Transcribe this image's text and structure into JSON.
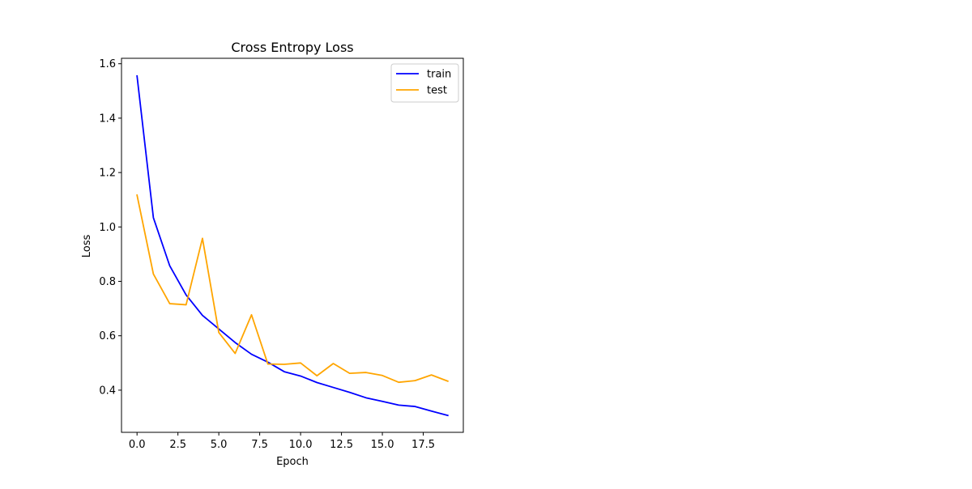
{
  "chart_data": {
    "type": "line",
    "title": "Cross Entropy Loss",
    "xlabel": "Epoch",
    "ylabel": "Loss",
    "xlim": [
      -0.95,
      19.95
    ],
    "ylim": [
      0.245,
      1.62
    ],
    "xticks": [
      0,
      2.5,
      5,
      7.5,
      10,
      12.5,
      15,
      17.5
    ],
    "xtick_labels": [
      "0.0",
      "2.5",
      "5.0",
      "7.5",
      "10.0",
      "12.5",
      "15.0",
      "17.5"
    ],
    "yticks": [
      0.4,
      0.6,
      0.8,
      1.0,
      1.2,
      1.4,
      1.6
    ],
    "ytick_labels": [
      "0.4",
      "0.6",
      "0.8",
      "1.0",
      "1.2",
      "1.4",
      "1.6"
    ],
    "grid": false,
    "legend_position": "upper right",
    "x": [
      0,
      1,
      2,
      3,
      4,
      5,
      6,
      7,
      8,
      9,
      10,
      11,
      12,
      13,
      14,
      15,
      16,
      17,
      18,
      19
    ],
    "series": [
      {
        "name": "train",
        "color": "#0000ff",
        "values": [
          1.555,
          1.034,
          0.857,
          0.75,
          0.675,
          0.625,
          0.575,
          0.532,
          0.503,
          0.468,
          0.452,
          0.428,
          0.41,
          0.392,
          0.372,
          0.359,
          0.345,
          0.34,
          0.323,
          0.307
        ]
      },
      {
        "name": "test",
        "color": "#ffa500",
        "values": [
          1.117,
          0.827,
          0.718,
          0.714,
          0.958,
          0.612,
          0.535,
          0.677,
          0.496,
          0.495,
          0.5,
          0.453,
          0.498,
          0.462,
          0.465,
          0.454,
          0.429,
          0.435,
          0.456,
          0.433
        ]
      }
    ]
  }
}
